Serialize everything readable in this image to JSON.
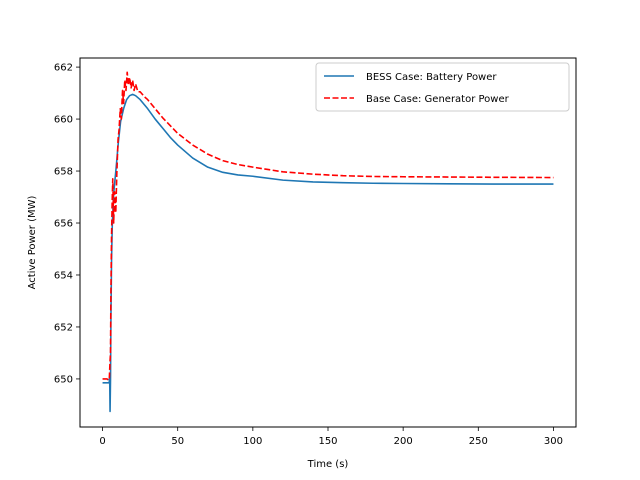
{
  "chart_data": {
    "type": "line",
    "title": "",
    "xlabel": "Time (s)",
    "ylabel": "Active Power (MW)",
    "xlim": [
      -15,
      315
    ],
    "ylim": [
      648.15,
      662.35
    ],
    "xticks": [
      0,
      50,
      100,
      150,
      200,
      250,
      300
    ],
    "yticks": [
      650,
      652,
      654,
      656,
      658,
      660,
      662
    ],
    "grid": false,
    "legend_position": "top-right",
    "series": [
      {
        "name": "BESS Case: Battery Power",
        "color": "#1f77b4",
        "dash": "solid",
        "points": [
          [
            0,
            649.85
          ],
          [
            3,
            649.85
          ],
          [
            4.5,
            649.85
          ],
          [
            4.5,
            650.0
          ],
          [
            4.8,
            649.8
          ],
          [
            5.0,
            648.75
          ],
          [
            5.3,
            650.0
          ],
          [
            5.6,
            652.5
          ],
          [
            6.0,
            654.6
          ],
          [
            6.5,
            656.0
          ],
          [
            7.5,
            657.2
          ],
          [
            9,
            658.1
          ],
          [
            10.5,
            659.1
          ],
          [
            12,
            659.9
          ],
          [
            14,
            660.4
          ],
          [
            16,
            660.75
          ],
          [
            18,
            660.9
          ],
          [
            20,
            660.95
          ],
          [
            22,
            660.9
          ],
          [
            25,
            660.75
          ],
          [
            30,
            660.4
          ],
          [
            35,
            660.0
          ],
          [
            40,
            659.65
          ],
          [
            45,
            659.3
          ],
          [
            50,
            659.0
          ],
          [
            60,
            658.5
          ],
          [
            70,
            658.15
          ],
          [
            80,
            657.95
          ],
          [
            90,
            657.85
          ],
          [
            100,
            657.8
          ],
          [
            120,
            657.65
          ],
          [
            140,
            657.58
          ],
          [
            160,
            657.55
          ],
          [
            180,
            657.53
          ],
          [
            200,
            657.52
          ],
          [
            230,
            657.51
          ],
          [
            260,
            657.5
          ],
          [
            300,
            657.5
          ]
        ]
      },
      {
        "name": "Base Case: Generator Power",
        "color": "#ff0000",
        "dash": "dashed",
        "points": [
          [
            0,
            650.0
          ],
          [
            3,
            650.0
          ],
          [
            4.0,
            649.95
          ],
          [
            4.5,
            650.0
          ],
          [
            5.0,
            650.7
          ],
          [
            5.3,
            651.0
          ],
          [
            5.6,
            653.5
          ],
          [
            6.0,
            655.5
          ],
          [
            6.4,
            656.8
          ],
          [
            6.8,
            657.7
          ],
          [
            7.4,
            656.0
          ],
          [
            8.0,
            657.2
          ],
          [
            8.8,
            656.4
          ],
          [
            9.5,
            657.9
          ],
          [
            10.3,
            659.2
          ],
          [
            11,
            659.6
          ],
          [
            11.8,
            660.4
          ],
          [
            12.5,
            660.0
          ],
          [
            13.3,
            661.1
          ],
          [
            14,
            660.6
          ],
          [
            14.8,
            661.5
          ],
          [
            15.6,
            661.1
          ],
          [
            16.4,
            661.8
          ],
          [
            17.2,
            661.3
          ],
          [
            18,
            661.6
          ],
          [
            19,
            661.2
          ],
          [
            20,
            661.5
          ],
          [
            21,
            661.1
          ],
          [
            22,
            661.35
          ],
          [
            23.5,
            661.05
          ],
          [
            25,
            661.05
          ],
          [
            28,
            660.85
          ],
          [
            30,
            660.75
          ],
          [
            35,
            660.4
          ],
          [
            40,
            660.05
          ],
          [
            45,
            659.75
          ],
          [
            50,
            659.45
          ],
          [
            60,
            659.0
          ],
          [
            70,
            658.65
          ],
          [
            80,
            658.4
          ],
          [
            90,
            658.25
          ],
          [
            100,
            658.15
          ],
          [
            120,
            657.97
          ],
          [
            140,
            657.88
          ],
          [
            160,
            657.82
          ],
          [
            180,
            657.79
          ],
          [
            200,
            657.78
          ],
          [
            230,
            657.77
          ],
          [
            260,
            657.76
          ],
          [
            300,
            657.75
          ]
        ]
      }
    ]
  }
}
